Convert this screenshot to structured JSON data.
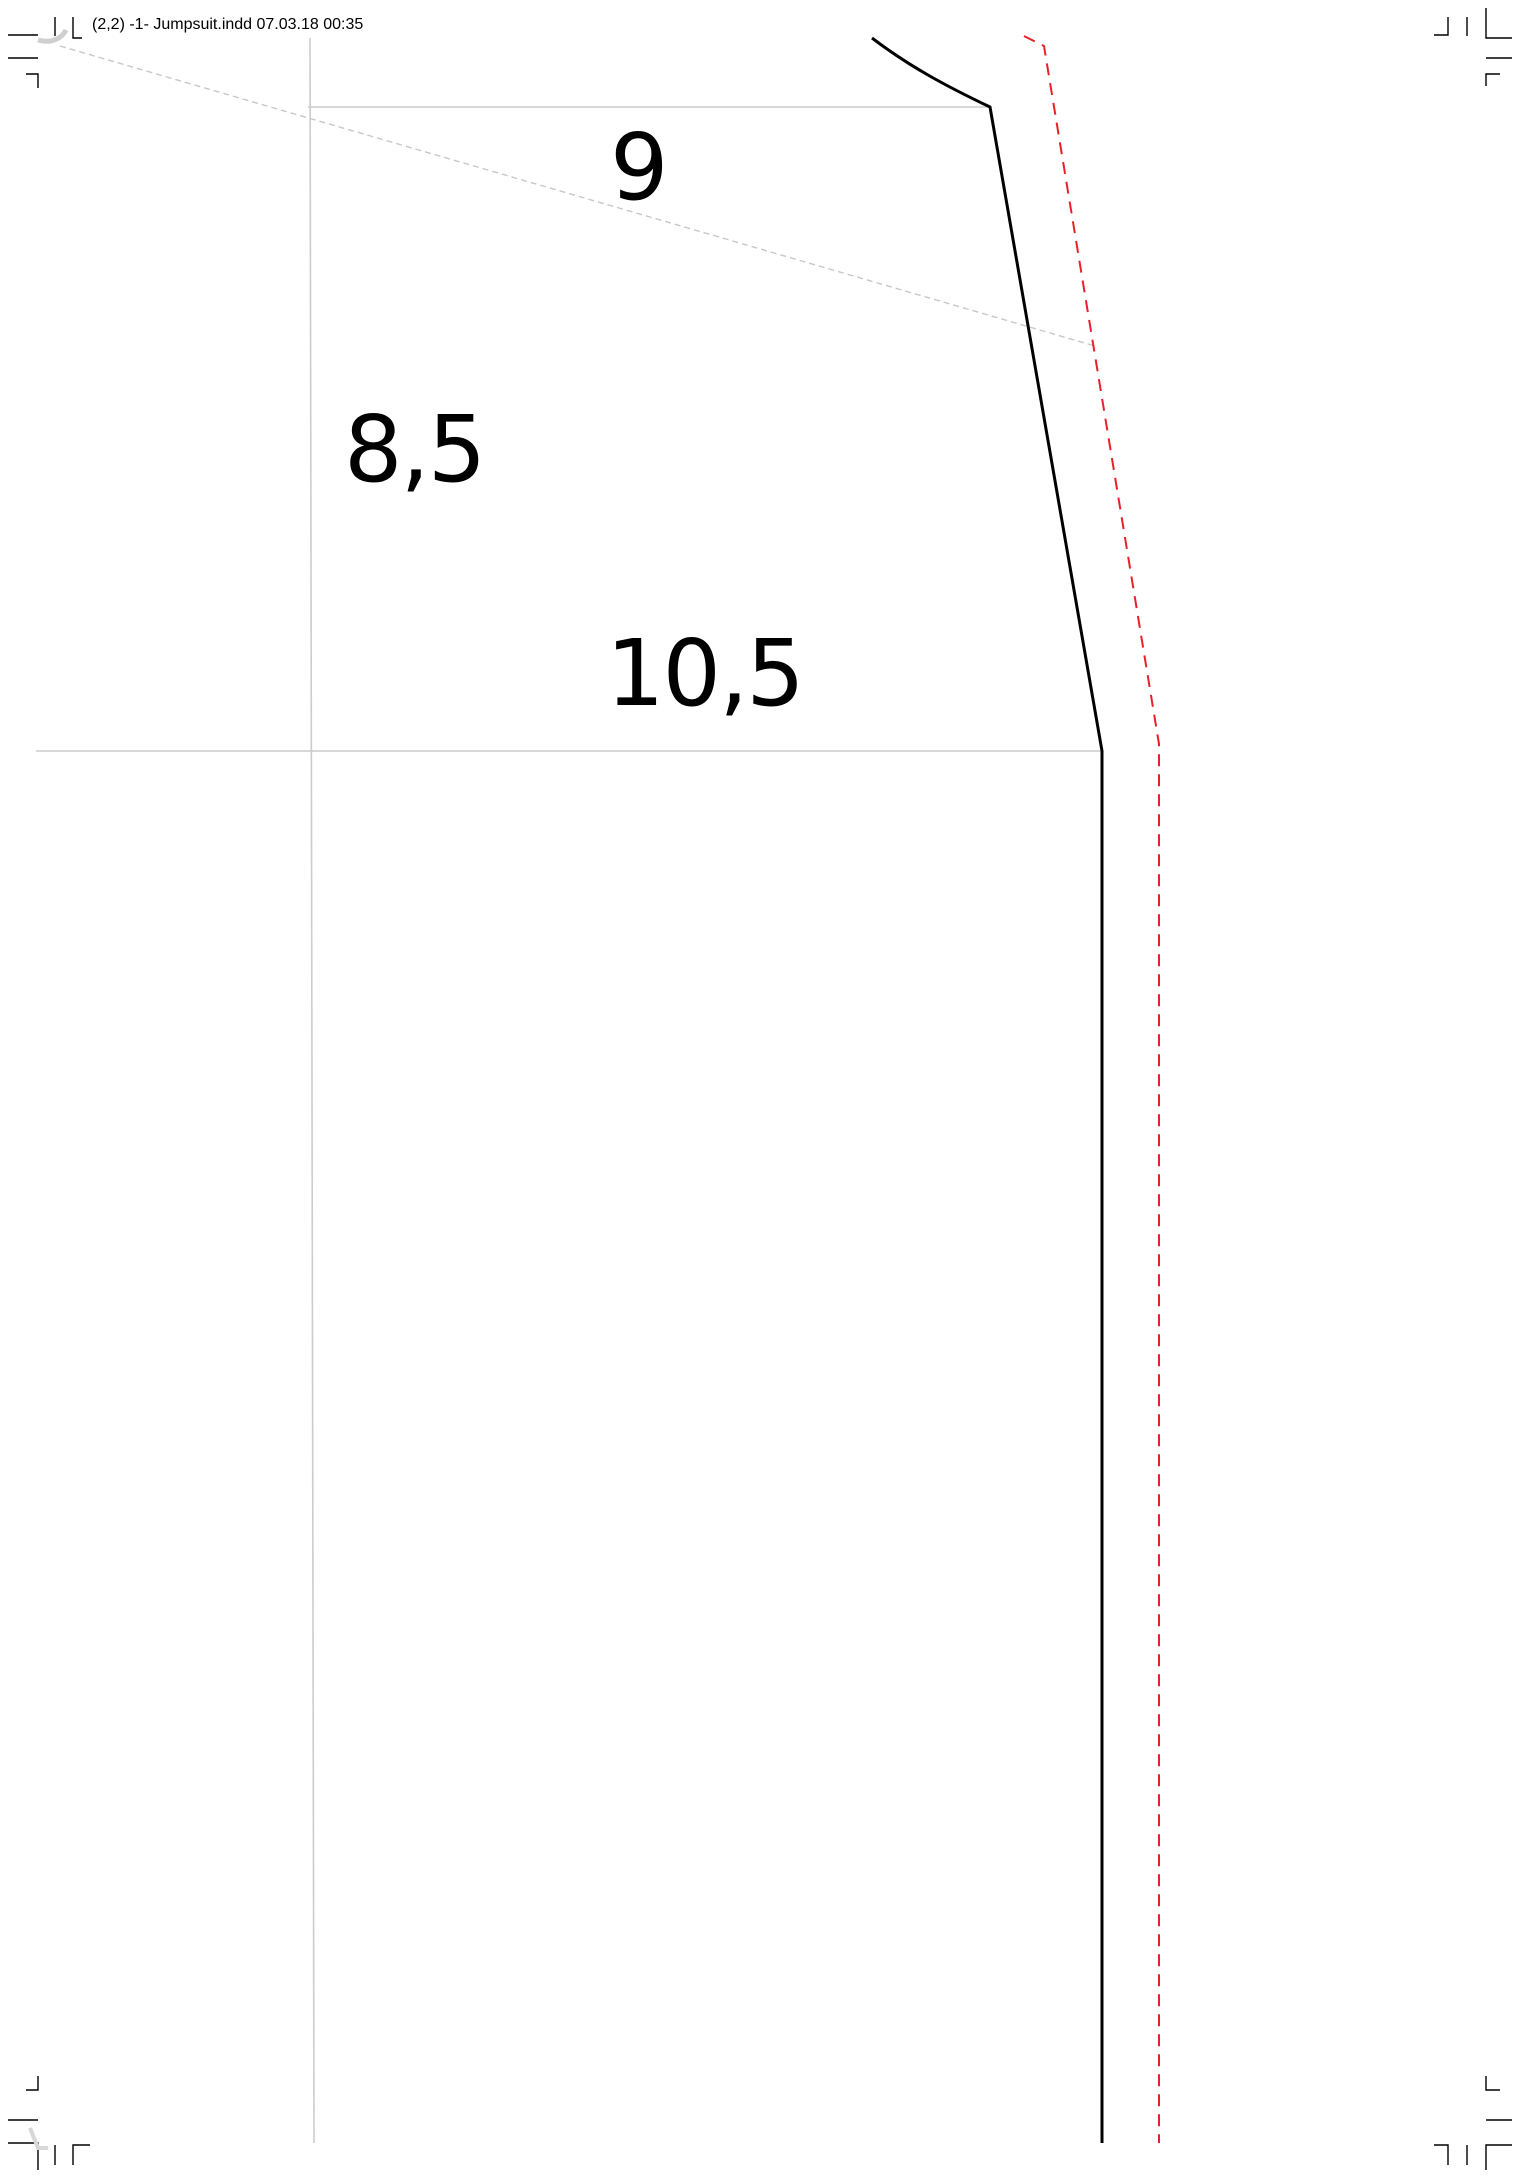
{
  "slug": "(2,2)  -1- Jumpsuit.indd 07.03.18 00:35",
  "measurements": {
    "top_width": "9",
    "side_depth": "8,5",
    "bottom_width": "10,5"
  },
  "colors": {
    "pattern_line": "#000000",
    "seam_allowance": "#e8202a",
    "guide_line": "#c8c8c8",
    "crop_marks": "#000000"
  }
}
